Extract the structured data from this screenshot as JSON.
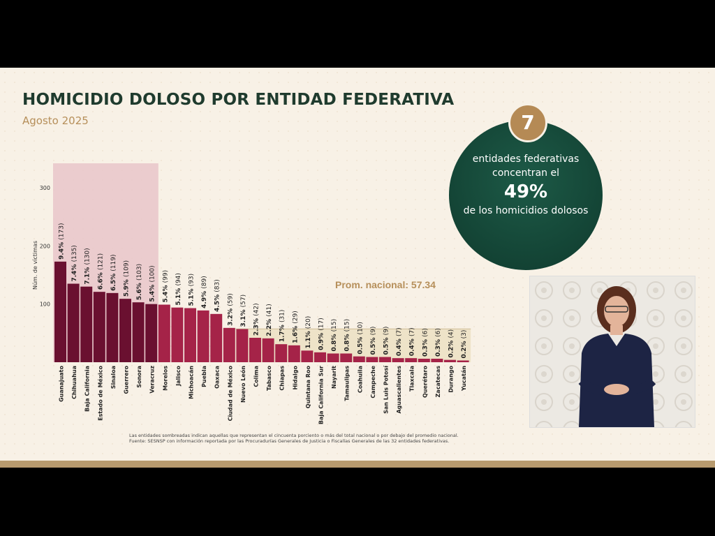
{
  "slide": {
    "title": "HOMICIDIO DOLOSO POR ENTIDAD FEDERATIVA",
    "subtitle": "Agosto 2025"
  },
  "summary": {
    "count": "7",
    "line1": "entidades federativas",
    "line2": "concentran el",
    "percent": "49%",
    "line3": "de los homicidios dolosos"
  },
  "footnotes": {
    "note1": "Las entidades sombreadas indican aquellas que representan el cincuenta porciento o más del total nacional o por debajo del promedio nacional.",
    "note2": "Fuente: SESNSP con información reportada por las Procuradurías Generales de Justicia o Fiscalías Generales de las 32 entidades federativas."
  },
  "colors": {
    "dark_bar": "#6a1030",
    "bar": "#a52348",
    "highlight_top": "#e9c6c9",
    "highlight_low": "#eee3c8",
    "green": "#1f3b2e",
    "gold": "#b68f5a"
  },
  "chart_data": {
    "type": "bar",
    "ylabel": "Núm. de víctimas",
    "yticks": [
      100,
      200,
      300
    ],
    "ylim": [
      0,
      300
    ],
    "average_label": "Prom. nacional: 57.34",
    "average_value": 57.34,
    "categories": [
      "Guanajuato",
      "Chihuahua",
      "Baja California",
      "Estado de México",
      "Sinaloa",
      "Guerrero",
      "Sonora",
      "Veracruz",
      "Morelos",
      "Jalisco",
      "Michoacán",
      "Puebla",
      "Oaxaca",
      "Ciudad de México",
      "Nuevo León",
      "Colima",
      "Tabasco",
      "Chiapas",
      "Hidalgo",
      "Quintana Roo",
      "Baja California Sur",
      "Nayarit",
      "Tamaulipas",
      "Coahuila",
      "Campeche",
      "San Luis Potosí",
      "Aguascalientes",
      "Tlaxcala",
      "Querétaro",
      "Zacatecas",
      "Durango",
      "Yucatán"
    ],
    "values": [
      173,
      135,
      130,
      121,
      119,
      109,
      103,
      100,
      99,
      94,
      93,
      89,
      83,
      59,
      57,
      42,
      41,
      31,
      29,
      20,
      17,
      15,
      15,
      10,
      9,
      9,
      7,
      7,
      6,
      6,
      4,
      3
    ],
    "percent_labels": [
      "9.4%",
      "7.4%",
      "7.1%",
      "6.6%",
      "6.5%",
      "5.9%",
      "5.6%",
      "5.4%",
      "5.4%",
      "5.1%",
      "5.1%",
      "4.9%",
      "4.5%",
      "3.2%",
      "3.1%",
      "2.3%",
      "2.2%",
      "1.7%",
      "1.6%",
      "1.1%",
      "0.9%",
      "0.8%",
      "0.8%",
      "0.5%",
      "0.5%",
      "0.5%",
      "0.4%",
      "0.4%",
      "0.3%",
      "0.3%",
      "0.2%",
      "0.2%"
    ],
    "count_labels": [
      "(173)",
      "(135)",
      "(130)",
      "(121)",
      "(119)",
      "(109)",
      "(103)",
      "(100)",
      "(99)",
      "(94)",
      "(93)",
      "(89)",
      "(83)",
      "(59)",
      "(57)",
      "(42)",
      "(41)",
      "(31)",
      "(29)",
      "(20)",
      "(17)",
      "(15)",
      "(15)",
      "(10)",
      "(9)",
      "(9)",
      "(7)",
      "(7)",
      "(6)",
      "(6)",
      "(4)",
      "(3)"
    ],
    "top_group_count": 8
  }
}
